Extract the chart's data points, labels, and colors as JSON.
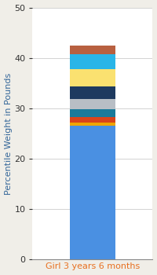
{
  "category": "Girl 3 years 6 months",
  "segments": [
    {
      "color": "#4A90E2",
      "value": 26.5
    },
    {
      "color": "#F0A500",
      "value": 0.6
    },
    {
      "color": "#D9441A",
      "value": 1.2
    },
    {
      "color": "#1A7A9A",
      "value": 1.5
    },
    {
      "color": "#B8BEC5",
      "value": 2.0
    },
    {
      "color": "#1E3A5F",
      "value": 2.5
    },
    {
      "color": "#FAE170",
      "value": 3.5
    },
    {
      "color": "#29B5E8",
      "value": 3.0
    },
    {
      "color": "#B86040",
      "value": 1.7
    }
  ],
  "ylabel": "Percentile Weight in Pounds",
  "ylim": [
    0,
    50
  ],
  "yticks": [
    0,
    10,
    20,
    30,
    40,
    50
  ],
  "bg_color": "#F0EEE8",
  "plot_bg": "#FFFFFF",
  "bar_width": 0.45,
  "label_fontsize": 8,
  "ylabel_fontsize": 8,
  "ylabel_color": "#336699",
  "xlabel_color": "#E87020",
  "tick_color": "#333333",
  "grid_color": "#CCCCCC",
  "spine_color": "#888888"
}
